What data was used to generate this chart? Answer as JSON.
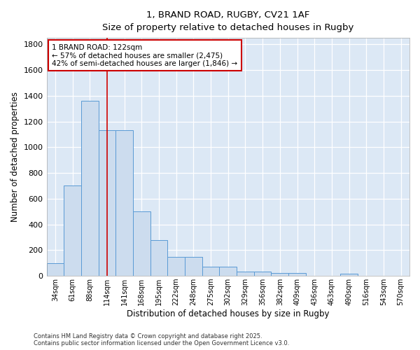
{
  "title_line1": "1, BRAND ROAD, RUGBY, CV21 1AF",
  "title_line2": "Size of property relative to detached houses in Rugby",
  "xlabel": "Distribution of detached houses by size in Rugby",
  "ylabel": "Number of detached properties",
  "bar_color": "#ccdcee",
  "bar_edge_color": "#5a9ad5",
  "plot_bg_color": "#dce8f5",
  "figure_bg_color": "#ffffff",
  "grid_color": "#ffffff",
  "categories": [
    "34sqm",
    "61sqm",
    "88sqm",
    "114sqm",
    "141sqm",
    "168sqm",
    "195sqm",
    "222sqm",
    "248sqm",
    "275sqm",
    "302sqm",
    "329sqm",
    "356sqm",
    "382sqm",
    "409sqm",
    "436sqm",
    "463sqm",
    "490sqm",
    "516sqm",
    "543sqm",
    "570sqm"
  ],
  "values": [
    100,
    700,
    1360,
    1130,
    1130,
    500,
    280,
    150,
    150,
    70,
    70,
    35,
    35,
    20,
    20,
    0,
    0,
    15,
    0,
    0,
    0
  ],
  "red_line_x": 3.0,
  "red_line_color": "#cc0000",
  "annotation_text": "1 BRAND ROAD: 122sqm\n← 57% of detached houses are smaller (2,475)\n42% of semi-detached houses are larger (1,846) →",
  "annotation_box_color": "#ffffff",
  "annotation_box_edge": "#cc0000",
  "ylim": [
    0,
    1850
  ],
  "yticks": [
    0,
    200,
    400,
    600,
    800,
    1000,
    1200,
    1400,
    1600,
    1800
  ],
  "footnote_line1": "Contains HM Land Registry data © Crown copyright and database right 2025.",
  "footnote_line2": "Contains public sector information licensed under the Open Government Licence v3.0."
}
